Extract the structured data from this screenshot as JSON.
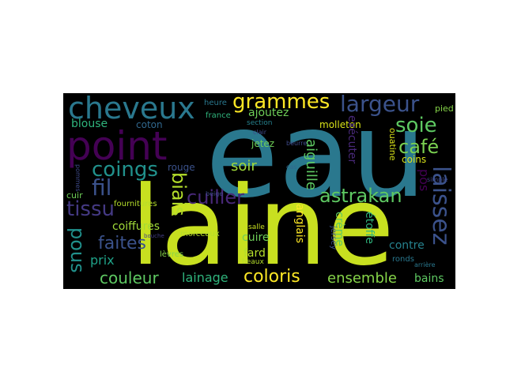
{
  "word_cloud": {
    "background": "#000000",
    "words": [
      {
        "text": "eau",
        "color": "#2a788e"
      },
      {
        "text": "laine",
        "color": "#c8e020"
      },
      {
        "text": "point",
        "color": "#440154"
      },
      {
        "text": "cheveux",
        "color": "#2a788e"
      },
      {
        "text": "grammes",
        "color": "#fde725"
      },
      {
        "text": "largeur",
        "color": "#3b528b"
      },
      {
        "text": "soie",
        "color": "#5ec962"
      },
      {
        "text": "café",
        "color": "#7ad151"
      },
      {
        "text": "laissez",
        "color": "#3b528b"
      },
      {
        "text": "coings",
        "color": "#21918c"
      },
      {
        "text": "fil",
        "color": "#3b528b"
      },
      {
        "text": "tissu",
        "color": "#443983"
      },
      {
        "text": "biais",
        "color": "#b5de2b"
      },
      {
        "text": "cuiller",
        "color": "#482878"
      },
      {
        "text": "astrakan",
        "color": "#5ec962"
      },
      {
        "text": "pous",
        "color": "#21918c"
      },
      {
        "text": "faites",
        "color": "#3b528b"
      },
      {
        "text": "coiffures",
        "color": "#a0da39"
      },
      {
        "text": "couleur",
        "color": "#5ec962"
      },
      {
        "text": "lainage",
        "color": "#2fb47c"
      },
      {
        "text": "coloris",
        "color": "#fde725"
      },
      {
        "text": "ensemble",
        "color": "#86d549"
      },
      {
        "text": "bains",
        "color": "#5ec962"
      },
      {
        "text": "blouse",
        "color": "#2fb47c"
      },
      {
        "text": "coton",
        "color": "#31688e"
      },
      {
        "text": "soir",
        "color": "#a0da39"
      },
      {
        "text": "aiguille",
        "color": "#5ec962"
      },
      {
        "text": "ajoutez",
        "color": "#6ece58"
      },
      {
        "text": "prix",
        "color": "#1fa187"
      },
      {
        "text": "anglais",
        "color": "#fde725"
      },
      {
        "text": "crème",
        "color": "#5ec962"
      },
      {
        "text": "étoffe",
        "color": "#2fb47c"
      },
      {
        "text": "contre",
        "color": "#26828e"
      },
      {
        "text": "fard",
        "color": "#b5de2b"
      },
      {
        "text": "cuire",
        "color": "#6ece58"
      },
      {
        "text": "molleton",
        "color": "#d8e219"
      },
      {
        "text": "pos",
        "color": "#440154"
      },
      {
        "text": "exécuter",
        "color": "#482878"
      },
      {
        "text": "coins",
        "color": "#d8e219"
      },
      {
        "text": "heure",
        "color": "#2a788e"
      },
      {
        "text": "france",
        "color": "#2fb47c"
      },
      {
        "text": "section",
        "color": "#26828e"
      },
      {
        "text": "jetez",
        "color": "#6ece58"
      },
      {
        "text": "rouge",
        "color": "#3b528b"
      },
      {
        "text": "fournitures",
        "color": "#b5de2b"
      },
      {
        "text": "cuir",
        "color": "#6ece58"
      },
      {
        "text": "morceaux",
        "color": "#b5de2b"
      },
      {
        "text": "salle",
        "color": "#c8e020"
      },
      {
        "text": "lèvres",
        "color": "#86d549"
      },
      {
        "text": "beaux",
        "color": "#b5de2b"
      },
      {
        "text": "jersey",
        "color": "#3b528b"
      },
      {
        "text": "ouatine",
        "color": "#d8e219"
      },
      {
        "text": "ronds",
        "color": "#2a788e"
      },
      {
        "text": "pied",
        "color": "#86d549"
      },
      {
        "text": "beurre",
        "color": "#3e4a89"
      },
      {
        "text": "cas",
        "color": "#31688e"
      },
      {
        "text": "clair",
        "color": "#3e4a89"
      },
      {
        "text": "bain",
        "color": "#2a788e"
      },
      {
        "text": "beige",
        "color": "#3e4a89"
      },
      {
        "text": "bouche",
        "color": "#433e85"
      },
      {
        "text": "pommes",
        "color": "#3e4a89"
      },
      {
        "text": "simple",
        "color": "#3e4a89"
      },
      {
        "text": "arrière",
        "color": "#2a788e"
      }
    ]
  }
}
